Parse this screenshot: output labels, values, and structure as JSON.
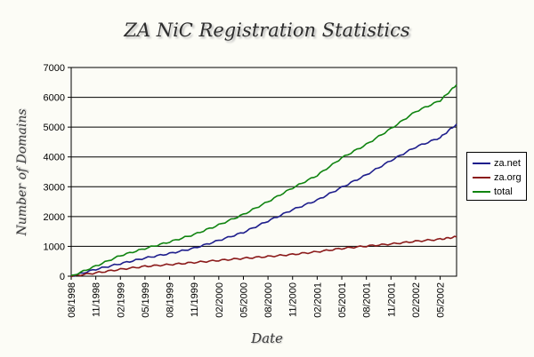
{
  "chart_data": {
    "type": "line",
    "title": "ZA NiC Registration Statistics",
    "xlabel": "Date",
    "ylabel": "Number of Domains",
    "ylim": [
      0,
      7000
    ],
    "yticks": [
      0,
      1000,
      2000,
      3000,
      4000,
      5000,
      6000,
      7000
    ],
    "xticks": [
      "08/1998",
      "11/1998",
      "02/1999",
      "05/1999",
      "08/1999",
      "11/1999",
      "02/2000",
      "05/2000",
      "08/2000",
      "11/2000",
      "02/2001",
      "05/2001",
      "08/2001",
      "11/2001",
      "02/2002",
      "05/2002"
    ],
    "x": [
      "08/1998",
      "11/1998",
      "02/1999",
      "05/1999",
      "08/1999",
      "11/1999",
      "02/2000",
      "05/2000",
      "08/2000",
      "11/2000",
      "02/2001",
      "05/2001",
      "08/2001",
      "11/2001",
      "02/2002",
      "05/2002",
      "07/2002"
    ],
    "grid": true,
    "legend_position": "right",
    "series": [
      {
        "name": "za.net",
        "color": "#1e1e8c",
        "values": [
          0,
          230,
          420,
          610,
          760,
          940,
          1200,
          1470,
          1850,
          2230,
          2550,
          2980,
          3400,
          3880,
          4330,
          4650,
          5100
        ]
      },
      {
        "name": "za.org",
        "color": "#8b1a1a",
        "values": [
          0,
          110,
          230,
          330,
          390,
          460,
          530,
          600,
          660,
          730,
          820,
          930,
          1010,
          1080,
          1170,
          1240,
          1320
        ]
      },
      {
        "name": "total",
        "color": "#108410",
        "values": [
          0,
          340,
          690,
          930,
          1150,
          1400,
          1720,
          2070,
          2500,
          2960,
          3380,
          3970,
          4420,
          4950,
          5520,
          5890,
          6420
        ]
      }
    ]
  }
}
